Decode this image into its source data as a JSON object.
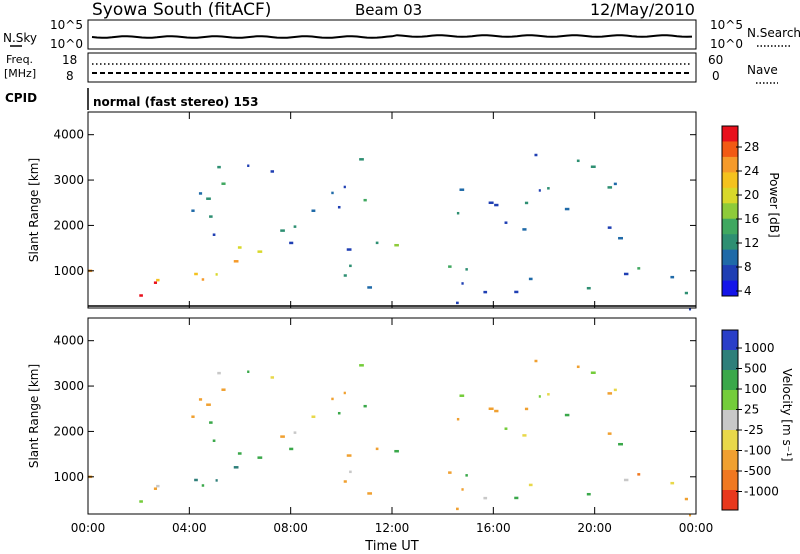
{
  "header": {
    "station": "Syowa South (fitACF)",
    "beam": "Beam 03",
    "date": "12/May/2010"
  },
  "panels": {
    "nsky_label": "N.Sky",
    "nsearch_label": "N.Search",
    "noise_ticks_left": [
      "10^5",
      "10^0"
    ],
    "noise_ticks_right": [
      "10^5",
      "10^0"
    ],
    "freq_label": "Freq.",
    "freq_unit": "[MHz]",
    "freq_ticks": [
      "18",
      "8"
    ],
    "nave_label": "Nave",
    "nave_ticks": [
      "60",
      "0"
    ],
    "cpid_label": "CPID",
    "cpid_text": "normal (fast stereo) 153"
  },
  "power_colorbar": {
    "label": "Power [dB]",
    "ticks": [
      "28",
      "24",
      "20",
      "16",
      "12",
      "8",
      "4"
    ],
    "colors": [
      "#e8101c",
      "#f25a14",
      "#f59a2a",
      "#f4c21e",
      "#d8d82a",
      "#8ecb3a",
      "#40a860",
      "#2e8f72",
      "#1f6aa8",
      "#1f3fb3",
      "#1414e8"
    ]
  },
  "velocity_colorbar": {
    "label": "Velocity [m s⁻¹]",
    "ticks": [
      "1000",
      "500",
      "100",
      "25",
      "-25",
      "-100",
      "-500",
      "-1000"
    ],
    "colors": [
      "#2a3fc8",
      "#2f7f7a",
      "#3aa84a",
      "#74cc3a",
      "#c8c8c8",
      "#e8d84a",
      "#f0a030",
      "#f07820",
      "#e8381c"
    ]
  },
  "chart_data": {
    "type": "heatmap",
    "xlabel": "Time UT",
    "ylabel": "Slant Range [km]",
    "x_ticks": [
      "00:00",
      "04:00",
      "08:00",
      "12:00",
      "16:00",
      "20:00",
      "00:00"
    ],
    "y_ticks": [
      "1000",
      "2000",
      "3000",
      "4000"
    ],
    "xlim_hours": [
      0,
      24
    ],
    "ylim_km": [
      180,
      4500
    ],
    "echo_regions": [
      {
        "t0": 0.0,
        "t1": 3.8,
        "r0": 180,
        "r1": 1100,
        "power_db": 26,
        "velocity": -150
      },
      {
        "t0": 3.0,
        "t1": 7.0,
        "r0": 400,
        "r1": 1700,
        "power_db": 22,
        "velocity": 300
      },
      {
        "t0": 3.5,
        "t1": 7.0,
        "r0": 1500,
        "r1": 3600,
        "power_db": 8,
        "velocity": -100
      },
      {
        "t0": 7.2,
        "t1": 11.0,
        "r0": 2600,
        "r1": 3600,
        "power_db": 6,
        "velocity": -200
      },
      {
        "t0": 7.0,
        "t1": 11.5,
        "r0": 400,
        "r1": 2600,
        "power_db": 6,
        "velocity": 50
      },
      {
        "t0": 11.0,
        "t1": 14.5,
        "r0": 1000,
        "r1": 1600,
        "power_db": 10,
        "velocity": 80
      },
      {
        "t0": 14.5,
        "t1": 21.0,
        "r0": 300,
        "r1": 3600,
        "power_db": 5,
        "velocity": -80
      },
      {
        "t0": 20.5,
        "t1": 24.0,
        "r0": 180,
        "r1": 1500,
        "power_db": 7,
        "velocity": -300
      }
    ]
  }
}
